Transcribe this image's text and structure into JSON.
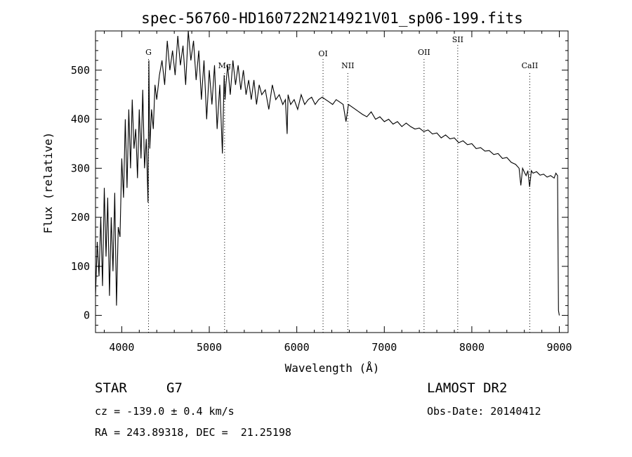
{
  "chart_data": {
    "type": "line",
    "title": "spec-56760-HD160722N214921V01_sp06-199.fits",
    "xlabel": "Wavelength (Å)",
    "ylabel": "Flux (relative)",
    "xlim": [
      3700,
      9100
    ],
    "ylim": [
      -35,
      580
    ],
    "xticks": [
      4000,
      5000,
      6000,
      7000,
      8000,
      9000
    ],
    "yticks": [
      0,
      100,
      200,
      300,
      400,
      500
    ],
    "series": [
      {
        "name": "flux",
        "x": [
          3700,
          3720,
          3740,
          3760,
          3780,
          3800,
          3820,
          3840,
          3860,
          3880,
          3900,
          3920,
          3940,
          3960,
          3980,
          4000,
          4020,
          4040,
          4060,
          4080,
          4100,
          4120,
          4140,
          4160,
          4180,
          4200,
          4220,
          4240,
          4260,
          4280,
          4300,
          4310,
          4320,
          4340,
          4360,
          4380,
          4400,
          4430,
          4460,
          4490,
          4520,
          4550,
          4580,
          4610,
          4640,
          4670,
          4700,
          4730,
          4760,
          4790,
          4820,
          4850,
          4880,
          4910,
          4940,
          4970,
          5000,
          5030,
          5060,
          5090,
          5120,
          5150,
          5170,
          5180,
          5190,
          5210,
          5240,
          5270,
          5300,
          5330,
          5360,
          5390,
          5420,
          5450,
          5480,
          5510,
          5540,
          5570,
          5600,
          5640,
          5680,
          5720,
          5760,
          5800,
          5840,
          5870,
          5890,
          5900,
          5930,
          5970,
          6010,
          6050,
          6090,
          6130,
          6170,
          6210,
          6250,
          6290,
          6330,
          6370,
          6410,
          6450,
          6490,
          6530,
          6562,
          6590,
          6630,
          6670,
          6710,
          6750,
          6800,
          6850,
          6900,
          6950,
          7000,
          7050,
          7100,
          7150,
          7200,
          7250,
          7300,
          7350,
          7400,
          7450,
          7500,
          7550,
          7600,
          7650,
          7700,
          7750,
          7800,
          7850,
          7900,
          7950,
          8000,
          8050,
          8100,
          8150,
          8200,
          8250,
          8300,
          8350,
          8400,
          8450,
          8500,
          8540,
          8560,
          8580,
          8600,
          8620,
          8640,
          8660,
          8680,
          8700,
          8740,
          8780,
          8820,
          8860,
          8900,
          8940,
          8960,
          8980,
          8990,
          9000
        ],
        "values": [
          40,
          150,
          80,
          200,
          60,
          260,
          120,
          240,
          40,
          200,
          90,
          250,
          20,
          180,
          160,
          320,
          240,
          400,
          260,
          420,
          300,
          440,
          340,
          380,
          280,
          420,
          320,
          460,
          300,
          360,
          230,
          520,
          340,
          420,
          380,
          470,
          440,
          490,
          520,
          470,
          560,
          500,
          540,
          490,
          570,
          510,
          550,
          470,
          580,
          520,
          560,
          480,
          540,
          440,
          520,
          400,
          500,
          430,
          510,
          380,
          470,
          330,
          490,
          440,
          470,
          510,
          450,
          520,
          470,
          510,
          460,
          500,
          450,
          480,
          440,
          480,
          430,
          470,
          450,
          460,
          420,
          470,
          440,
          450,
          430,
          440,
          370,
          450,
          430,
          440,
          420,
          450,
          430,
          440,
          445,
          430,
          440,
          445,
          440,
          435,
          430,
          440,
          435,
          430,
          395,
          430,
          425,
          420,
          415,
          410,
          405,
          415,
          400,
          405,
          395,
          400,
          390,
          395,
          385,
          392,
          385,
          380,
          382,
          375,
          378,
          370,
          372,
          362,
          368,
          360,
          362,
          352,
          356,
          348,
          350,
          340,
          342,
          335,
          336,
          328,
          330,
          320,
          322,
          312,
          308,
          300,
          265,
          300,
          292,
          285,
          295,
          262,
          295,
          290,
          293,
          286,
          288,
          282,
          285,
          280,
          290,
          285,
          10,
          0
        ]
      }
    ],
    "lines": [
      {
        "label": "G",
        "x": 4306
      },
      {
        "label": "Mg",
        "x": 5175
      },
      {
        "label": "OI",
        "x": 6300
      },
      {
        "label": "NII",
        "x": 6583
      },
      {
        "label": "OII",
        "x": 7454
      },
      {
        "label": "SII",
        "x": 7839
      },
      {
        "label": "CaII",
        "x": 8662
      }
    ]
  },
  "info": {
    "class": "STAR",
    "subclass": "G7",
    "cz": "cz = -139.0 ± 0.4 km/s",
    "radec": "RA = 243.89318, DEC =  21.25198",
    "survey": "LAMOST DR2",
    "obsdate": "Obs-Date: 20140412"
  }
}
